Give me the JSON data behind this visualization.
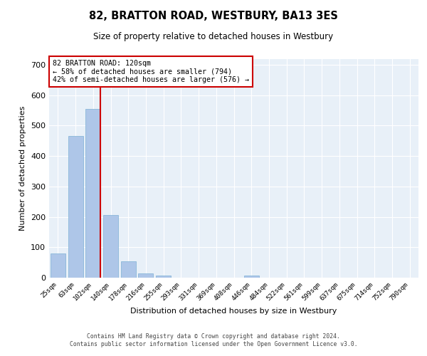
{
  "title": "82, BRATTON ROAD, WESTBURY, BA13 3ES",
  "subtitle": "Size of property relative to detached houses in Westbury",
  "xlabel": "Distribution of detached houses by size in Westbury",
  "ylabel": "Number of detached properties",
  "categories": [
    "25sqm",
    "63sqm",
    "102sqm",
    "140sqm",
    "178sqm",
    "216sqm",
    "255sqm",
    "293sqm",
    "331sqm",
    "369sqm",
    "408sqm",
    "446sqm",
    "484sqm",
    "522sqm",
    "561sqm",
    "599sqm",
    "637sqm",
    "675sqm",
    "714sqm",
    "752sqm",
    "790sqm"
  ],
  "values": [
    80,
    465,
    555,
    205,
    55,
    15,
    8,
    0,
    0,
    0,
    0,
    8,
    0,
    0,
    0,
    0,
    0,
    0,
    0,
    0,
    0
  ],
  "bar_color": "#aec6e8",
  "bar_edge_color": "#7bafd4",
  "vline_index": 2,
  "vline_color": "#cc0000",
  "annotation_text": "82 BRATTON ROAD: 120sqm\n← 58% of detached houses are smaller (794)\n42% of semi-detached houses are larger (576) →",
  "annotation_box_color": "#ffffff",
  "annotation_box_edge": "#cc0000",
  "ylim": [
    0,
    720
  ],
  "yticks": [
    0,
    100,
    200,
    300,
    400,
    500,
    600,
    700
  ],
  "background_color": "#e8f0f8",
  "grid_color": "#ffffff",
  "footer_line1": "Contains HM Land Registry data © Crown copyright and database right 2024.",
  "footer_line2": "Contains public sector information licensed under the Open Government Licence v3.0."
}
